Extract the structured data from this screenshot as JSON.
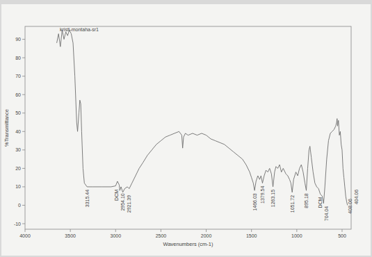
{
  "chart_data": {
    "type": "line",
    "title": "kristi-montaha-sr1",
    "x_label": "Wavenumbers (cm-1)",
    "y_label": "%Transmittance",
    "color": "#6e6e6e",
    "grid": false,
    "xlim": [
      4000,
      400
    ],
    "ylim": [
      -13,
      97
    ],
    "xticks": [
      4000,
      3500,
      3000,
      2500,
      2000,
      1500,
      1000,
      500
    ],
    "yticks": [
      -10,
      0,
      10,
      20,
      30,
      40,
      50,
      60,
      70,
      80,
      90
    ],
    "x": [
      3650,
      3630,
      3610,
      3590,
      3570,
      3550,
      3530,
      3510,
      3490,
      3470,
      3450,
      3430,
      3420,
      3405,
      3395,
      3385,
      3375,
      3360,
      3345,
      3315,
      3250,
      3150,
      3050,
      3000,
      2980,
      2960,
      2954,
      2940,
      2921,
      2900,
      2870,
      2850,
      2820,
      2780,
      2740,
      2700,
      2650,
      2600,
      2550,
      2500,
      2450,
      2400,
      2350,
      2300,
      2270,
      2260,
      2250,
      2230,
      2200,
      2150,
      2100,
      2050,
      2000,
      1950,
      1900,
      1850,
      1800,
      1750,
      1700,
      1650,
      1600,
      1560,
      1520,
      1500,
      1480,
      1466,
      1450,
      1430,
      1410,
      1395,
      1379,
      1360,
      1340,
      1320,
      1300,
      1280,
      1263,
      1245,
      1230,
      1210,
      1190,
      1170,
      1150,
      1120,
      1100,
      1080,
      1065,
      1051,
      1035,
      1010,
      990,
      970,
      950,
      930,
      910,
      895,
      880,
      865,
      855,
      840,
      820,
      800,
      780,
      760,
      740,
      720,
      704,
      690,
      670,
      650,
      630,
      610,
      590,
      570,
      560,
      555,
      550,
      540,
      530,
      520,
      510,
      500,
      490,
      480,
      470,
      460,
      450,
      440
    ],
    "values": [
      88,
      93,
      86,
      95,
      90,
      94,
      92,
      95,
      93,
      88,
      70,
      45,
      40,
      50,
      57,
      55,
      40,
      20,
      12,
      10,
      10,
      10,
      10,
      10.5,
      13,
      11,
      8,
      10,
      7,
      9,
      10,
      9,
      12,
      16,
      20,
      23,
      27,
      30,
      33,
      35,
      37,
      38,
      39,
      40,
      38,
      31,
      37,
      39,
      38,
      39,
      38,
      39,
      38,
      36,
      35,
      34,
      33,
      31,
      29,
      27,
      25,
      22,
      18,
      15,
      12,
      8,
      13,
      16,
      14,
      16,
      12,
      16,
      19,
      18,
      20,
      17,
      10,
      18,
      21,
      20,
      22,
      18,
      20,
      17,
      16,
      14,
      12,
      7,
      14,
      18,
      16,
      20,
      22,
      18,
      12,
      8,
      20,
      30,
      32,
      26,
      18,
      12,
      10,
      9,
      6,
      5,
      1,
      10,
      25,
      35,
      39,
      40,
      41,
      43,
      45,
      47,
      43,
      46,
      38,
      40,
      33,
      30,
      20,
      15,
      10,
      5,
      2,
      0
    ],
    "annotations": [
      {
        "x": 3315.44,
        "y": 10,
        "text": "3315.44"
      },
      {
        "x": 2990,
        "y": 10,
        "text": "DCM"
      },
      {
        "x": 2954.1,
        "y": 8,
        "text": "2954.10"
      },
      {
        "x": 2921.39,
        "y": 7,
        "text": "2921.39"
      },
      {
        "x": 1466.03,
        "y": 8,
        "text": "1466.03"
      },
      {
        "x": 1379.54,
        "y": 12,
        "text": "1379.54"
      },
      {
        "x": 1263.15,
        "y": 10,
        "text": "1263.15"
      },
      {
        "x": 1051.72,
        "y": 7,
        "text": "1051.72"
      },
      {
        "x": 895.18,
        "y": 8,
        "text": "895.18"
      },
      {
        "x": 740,
        "y": 6,
        "text": "DCM"
      },
      {
        "x": 704.04,
        "y": 1,
        "text": "704.04"
      },
      {
        "x": 408.06,
        "y": 5,
        "text": "408.06"
      },
      {
        "x": 404.06,
        "y": 10,
        "text": "404.06"
      }
    ]
  }
}
